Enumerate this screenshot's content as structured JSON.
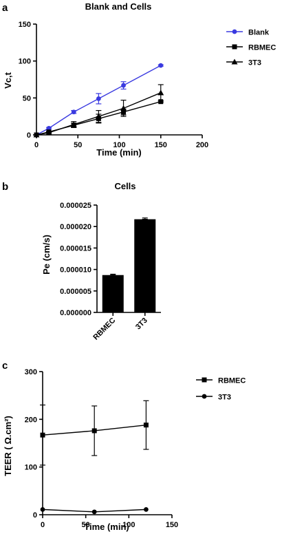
{
  "panels": [
    {
      "letter": "a"
    },
    {
      "letter": "b"
    },
    {
      "letter": "c"
    }
  ],
  "chart_data": [
    {
      "type": "line",
      "title": "Blank and Cells",
      "xlabel": "Time (min)",
      "ylabel": "Vc,t",
      "xlim": [
        0,
        200
      ],
      "ylim": [
        0,
        150
      ],
      "xticks": [
        0,
        50,
        100,
        150,
        200
      ],
      "yticks": [
        0,
        50,
        100,
        150
      ],
      "legend_position": "right",
      "series": [
        {
          "name": "Blank",
          "color": "#3a3ae0",
          "marker": "circle",
          "x": [
            0,
            15,
            45,
            75,
            105,
            150
          ],
          "y": [
            0,
            9,
            31,
            49,
            67,
            94
          ],
          "err": [
            0,
            1,
            2,
            7,
            5,
            1
          ]
        },
        {
          "name": "RBMEC",
          "color": "#000000",
          "marker": "square",
          "x": [
            0,
            15,
            45,
            75,
            105,
            150
          ],
          "y": [
            0,
            4,
            13,
            22,
            31,
            45
          ],
          "err": [
            0,
            1,
            3,
            6,
            4,
            1
          ]
        },
        {
          "name": "3T3",
          "color": "#000000",
          "marker": "triangle",
          "x": [
            0,
            15,
            45,
            75,
            105,
            150
          ],
          "y": [
            0,
            3,
            14,
            25,
            36,
            57
          ],
          "err": [
            0,
            1,
            4,
            8,
            11,
            11
          ]
        }
      ]
    },
    {
      "type": "bar",
      "title": "Cells",
      "xlabel": "",
      "ylabel": "Pe (cm/s)",
      "categories": [
        "RBMEC",
        "3T3"
      ],
      "values": [
        8.7e-06,
        2.17e-05
      ],
      "err": [
        2e-07,
        3e-07
      ],
      "ylim": [
        0,
        2.5e-05
      ],
      "yticks": [
        0.0,
        5e-06,
        1e-05,
        1.5e-05,
        2e-05,
        2.5e-05
      ],
      "ytick_labels": [
        "0.000000",
        "0.000005",
        "0.000010",
        "0.000015",
        "0.000020",
        "0.000025"
      ],
      "bar_color": "#000000"
    },
    {
      "type": "line",
      "title": "",
      "xlabel": "Time (min)",
      "ylabel": "TEER ( Ω.cm²)",
      "xlim": [
        0,
        150
      ],
      "ylim": [
        0,
        300
      ],
      "xticks": [
        0,
        50,
        100,
        150
      ],
      "yticks": [
        0,
        100,
        200,
        300
      ],
      "legend_position": "top-right",
      "series": [
        {
          "name": "RBMEC",
          "color": "#000000",
          "marker": "square",
          "x": [
            0,
            60,
            120
          ],
          "y": [
            167,
            176,
            188
          ],
          "err": [
            63,
            52,
            51
          ]
        },
        {
          "name": "3T3",
          "color": "#000000",
          "marker": "circle",
          "x": [
            0,
            60,
            120
          ],
          "y": [
            11,
            6,
            11
          ],
          "err": [
            0,
            0,
            0
          ]
        }
      ]
    }
  ]
}
